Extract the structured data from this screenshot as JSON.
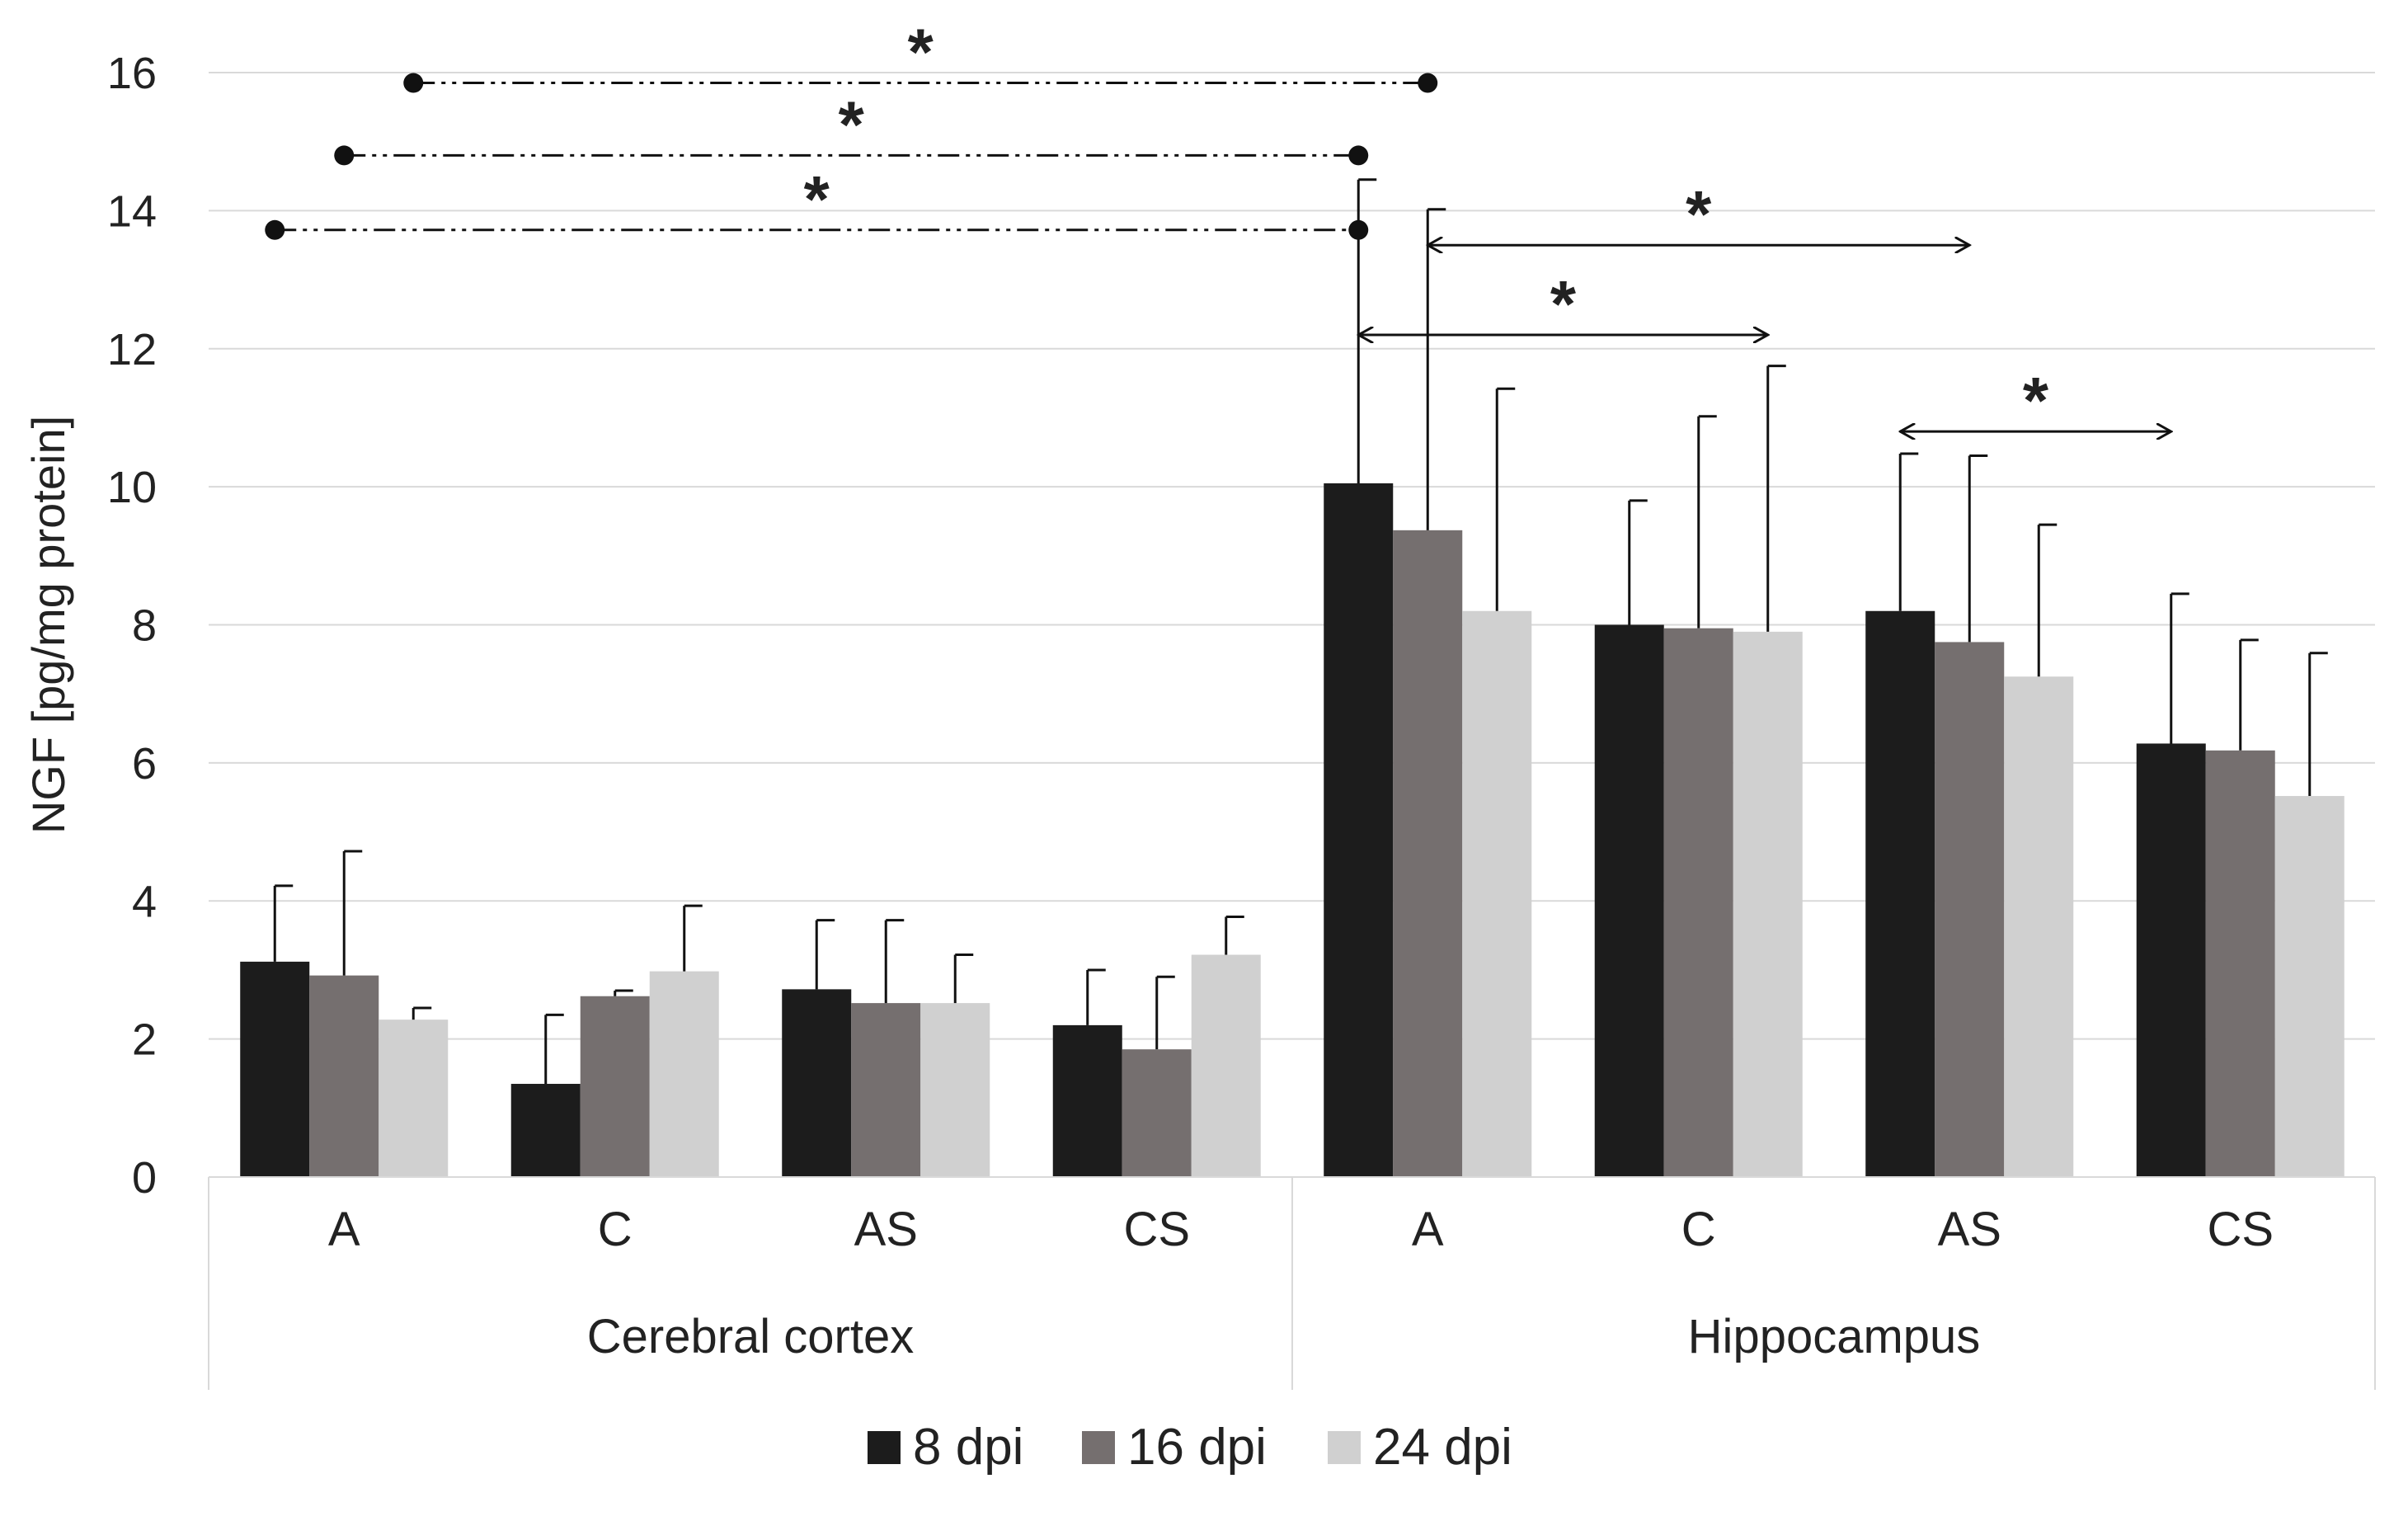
{
  "chart_data": {
    "type": "bar",
    "ylabel": "NGF  [pg/mg protein]",
    "ylim": [
      0,
      16
    ],
    "yticks": [
      0,
      2,
      4,
      6,
      8,
      10,
      12,
      14,
      16
    ],
    "grid": "horizontal",
    "legend_position": "bottom",
    "groups": [
      {
        "label": "Cerebral cortex",
        "categories": [
          "A",
          "C",
          "AS",
          "CS"
        ]
      },
      {
        "label": "Hippocampus",
        "categories": [
          "A",
          "C",
          "AS",
          "CS"
        ]
      }
    ],
    "series": [
      {
        "name": "8 dpi",
        "color": "#1c1c1c",
        "values": [
          3.12,
          1.35,
          2.72,
          2.2,
          10.05,
          8.0,
          8.2,
          6.28
        ],
        "errors": [
          1.1,
          1.0,
          1.0,
          0.8,
          4.4,
          1.8,
          2.28,
          2.17
        ]
      },
      {
        "name": "16 dpi",
        "color": "#756f6f",
        "values": [
          2.92,
          2.62,
          2.52,
          1.85,
          9.37,
          7.95,
          7.75,
          6.18
        ],
        "errors": [
          1.8,
          0.08,
          1.2,
          1.05,
          4.65,
          3.07,
          2.7,
          1.6
        ]
      },
      {
        "name": "24 dpi",
        "color": "#d0d0d0",
        "values": [
          2.28,
          2.98,
          2.52,
          3.22,
          8.2,
          7.9,
          7.25,
          5.52
        ],
        "errors": [
          0.17,
          0.95,
          0.7,
          0.55,
          3.22,
          3.85,
          2.2,
          2.07
        ]
      }
    ],
    "significance": [
      {
        "label": "*",
        "style": "dash-dot-dots",
        "from": {
          "category": 0,
          "series": 2
        },
        "to": {
          "category": 4,
          "series": 1
        },
        "y": 15.85
      },
      {
        "label": "*",
        "style": "dash-dot-dots",
        "from": {
          "category": 0,
          "series": 1
        },
        "to": {
          "category": 4,
          "series": 0
        },
        "y": 14.8
      },
      {
        "label": "*",
        "style": "dash-dot-dots",
        "from": {
          "category": 0,
          "series": 0
        },
        "to": {
          "category": 4,
          "series": 0
        },
        "y": 13.72
      },
      {
        "label": "*",
        "style": "arrows",
        "from": {
          "category": 4,
          "series": 1
        },
        "to": {
          "category": 6,
          "series": 1
        },
        "y": 13.5
      },
      {
        "label": "*",
        "style": "arrows",
        "from": {
          "category": 4,
          "series": 0
        },
        "to": {
          "category": 5,
          "series": 2
        },
        "y": 12.2
      },
      {
        "label": "*",
        "style": "arrows",
        "from": {
          "category": 6,
          "series": 0
        },
        "to": {
          "category": 7,
          "series": 0
        },
        "y": 10.8
      }
    ]
  }
}
